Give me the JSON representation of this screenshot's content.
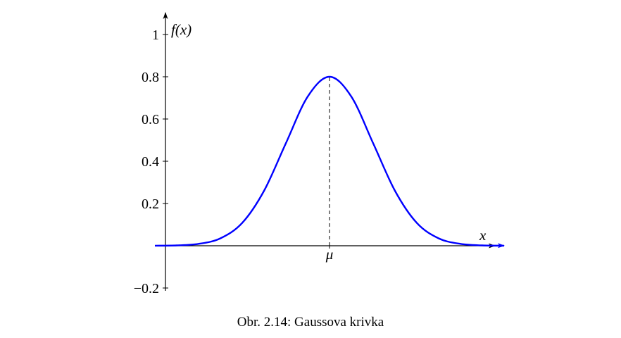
{
  "chart_data": {
    "type": "line",
    "ylabel": "f(x)",
    "xlabel": "x",
    "x_tick_labels": [
      "μ"
    ],
    "y_ticks": [
      -0.2,
      0.2,
      0.4,
      0.6,
      0.8,
      1
    ],
    "y_tick_labels": [
      "−0.2",
      "0.2",
      "0.4",
      "0.6",
      "0.8",
      "1"
    ],
    "xlim": [
      -4,
      4
    ],
    "ylim": [
      -0.2,
      1
    ],
    "grid": false,
    "annotations": [
      "dashed vertical line at μ from the x-axis to the peak"
    ],
    "series": [
      {
        "color": "#0000ff",
        "mean": 0,
        "peak": 0.8,
        "x": [
          -4,
          -3.5,
          -3,
          -2.5,
          -2,
          -1.5,
          -1,
          -0.5,
          0,
          0.5,
          1,
          1.5,
          2,
          2.5,
          3,
          3.5,
          4
        ],
        "y": [
          0.0003,
          0.0017,
          0.0089,
          0.035,
          0.108,
          0.26,
          0.485,
          0.706,
          0.8,
          0.706,
          0.485,
          0.26,
          0.108,
          0.035,
          0.0089,
          0.0017,
          0.0003
        ]
      }
    ]
  },
  "caption": "Obr. 2.14: Gaussova krivka"
}
